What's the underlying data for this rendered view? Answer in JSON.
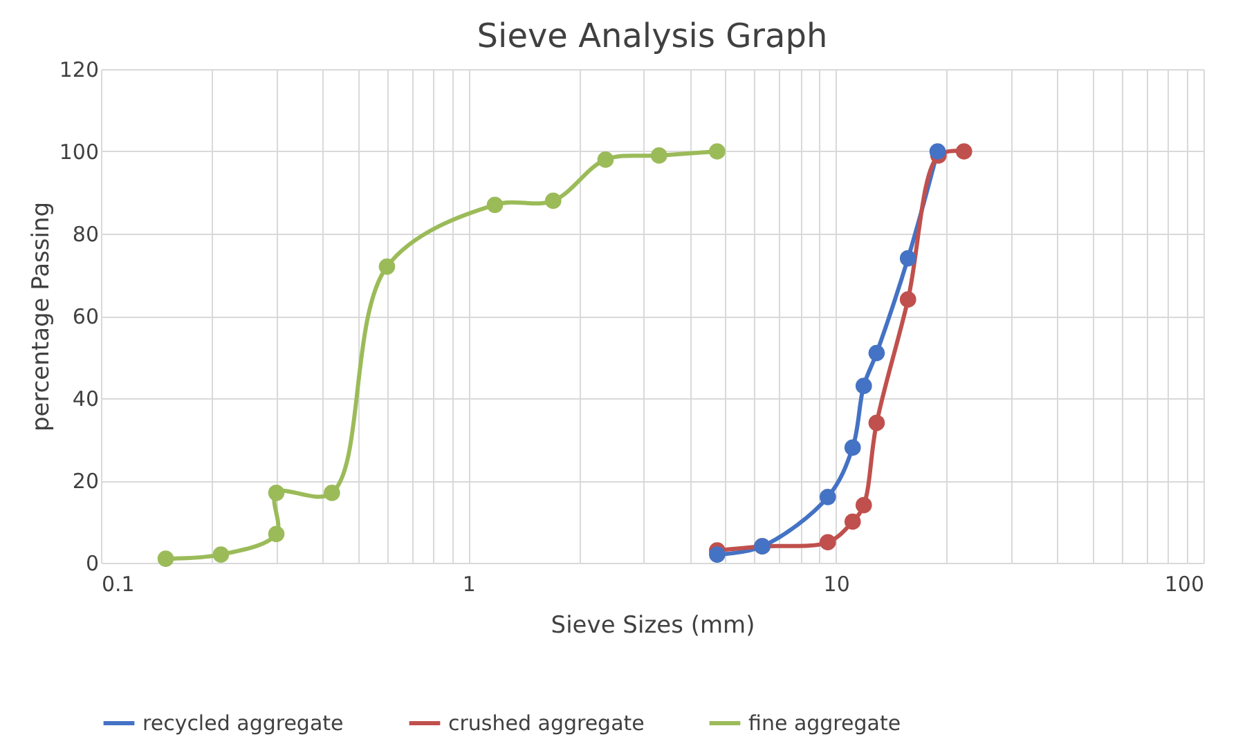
{
  "chart_data": {
    "type": "line",
    "title": "Sieve Analysis Graph",
    "xlabel": "Sieve Sizes (mm)",
    "ylabel": "percentage Passing",
    "log": "x",
    "xlim": [
      0.1,
      100
    ],
    "ylim": [
      0,
      120
    ],
    "yticks": [
      0,
      20,
      40,
      60,
      80,
      100,
      120
    ],
    "xticks": [
      0.1,
      {
        "value": 0.2,
        "label": null
      },
      {
        "value": 0.3,
        "label": null
      },
      {
        "value": 0.4,
        "label": null
      },
      {
        "value": 0.5,
        "label": null
      },
      {
        "value": 0.6,
        "label": null
      },
      {
        "value": 0.7,
        "label": null
      },
      {
        "value": 0.8,
        "label": null
      },
      {
        "value": 0.9,
        "label": null
      },
      1,
      {
        "value": 2,
        "label": null
      },
      {
        "value": 3,
        "label": null
      },
      {
        "value": 4,
        "label": null
      },
      {
        "value": 5,
        "label": null
      },
      {
        "value": 6,
        "label": null
      },
      {
        "value": 7,
        "label": null
      },
      {
        "value": 8,
        "label": null
      },
      {
        "value": 9,
        "label": null
      },
      10,
      {
        "value": 20,
        "label": null
      },
      {
        "value": 30,
        "label": null
      },
      {
        "value": 40,
        "label": null
      },
      {
        "value": 50,
        "label": null
      },
      {
        "value": 60,
        "label": null
      },
      {
        "value": 70,
        "label": null
      },
      {
        "value": 80,
        "label": null
      },
      {
        "value": 90,
        "label": null
      },
      100
    ],
    "grid": true,
    "legend": "bottom",
    "marker": "circle",
    "line_style": "solid",
    "series": [
      {
        "name": "recycled aggregate",
        "color": "#4472c4",
        "x": [
          4.75,
          6.3,
          9.5,
          11.1,
          11.9,
          12.9,
          15.7,
          18.9
        ],
        "values": [
          2,
          4,
          16,
          28,
          43,
          51,
          74,
          100
        ]
      },
      {
        "name": "crushed aggregate",
        "color": "#c0504d",
        "x": [
          4.75,
          6.3,
          9.5,
          11.1,
          11.9,
          12.9,
          15.7,
          19,
          22.3
        ],
        "values": [
          3,
          4,
          5,
          10,
          14,
          34,
          64,
          99,
          100
        ]
      },
      {
        "name": "fine aggregate",
        "color": "#9bbb59",
        "x": [
          0.15,
          0.212,
          0.3,
          0.3,
          0.425,
          0.6,
          1.18,
          1.7,
          2.36,
          3.3,
          4.75
        ],
        "values": [
          1,
          2,
          7,
          17,
          17,
          72,
          87,
          88,
          98,
          99,
          100
        ]
      }
    ]
  }
}
